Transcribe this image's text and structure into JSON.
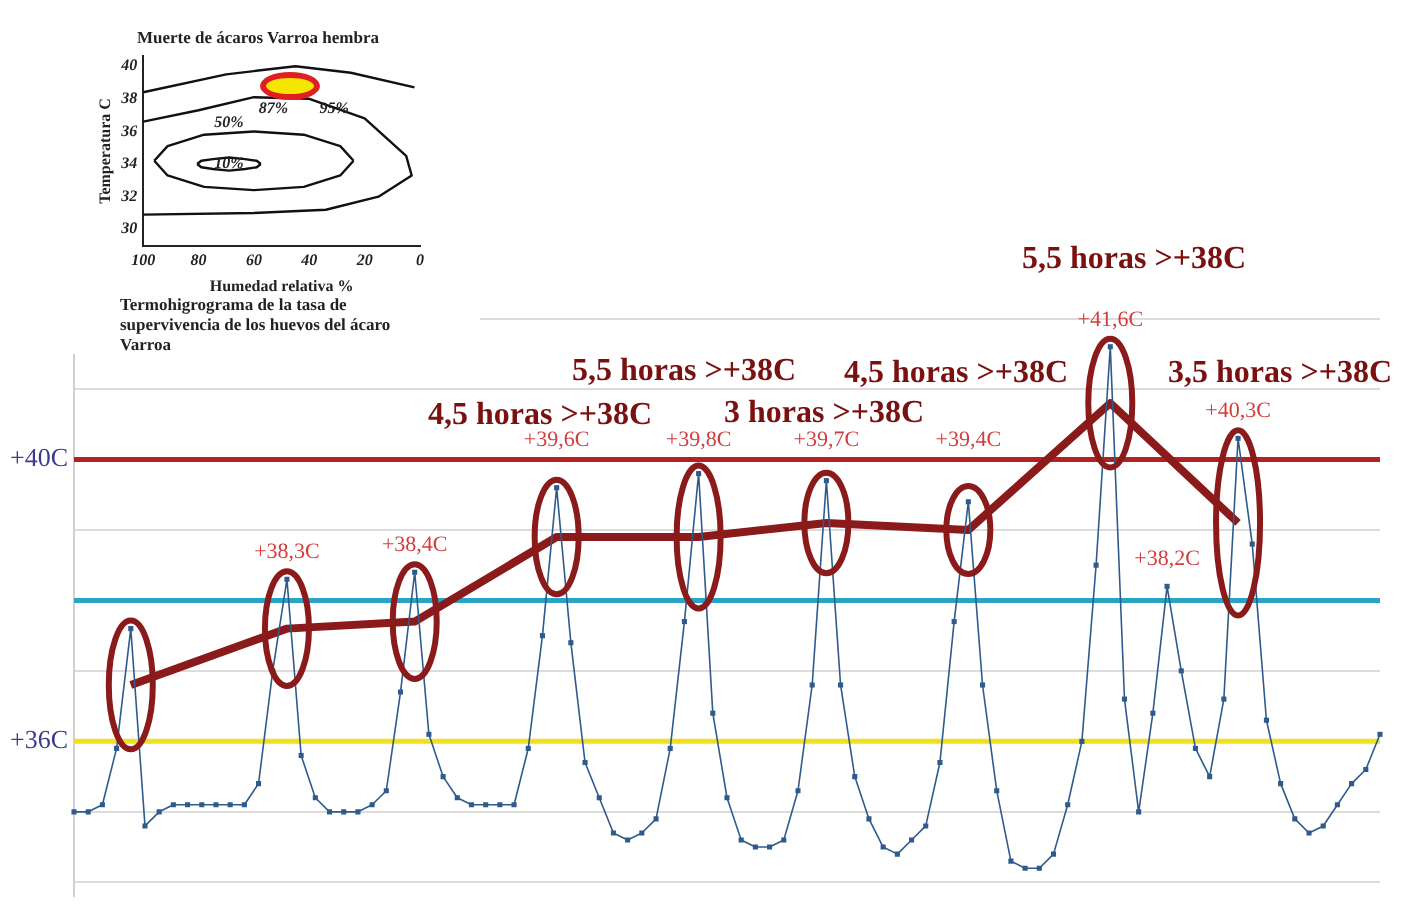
{
  "chart_data": [
    {
      "type": "line",
      "ylim": [
        33.8,
        43.2
      ],
      "categories": [
        null,
        null,
        null,
        null,
        null,
        null,
        null,
        null,
        null,
        null,
        null,
        null,
        null,
        null,
        null,
        null,
        null,
        null,
        null,
        null,
        null,
        null,
        null,
        null,
        null,
        null,
        null,
        null,
        null,
        null,
        null,
        null,
        null,
        null,
        null,
        null,
        null,
        null,
        null,
        null,
        null,
        null,
        null,
        null,
        null,
        null,
        null,
        null,
        null,
        null,
        null,
        null,
        null,
        null,
        null,
        null,
        null,
        null,
        null,
        null,
        null,
        null,
        null,
        null,
        null,
        null,
        null,
        null,
        null,
        null,
        null,
        null,
        null,
        null,
        null,
        null,
        null,
        null,
        null,
        null,
        null,
        null,
        null,
        null,
        null,
        null,
        null,
        null,
        null,
        null,
        null,
        null,
        null
      ],
      "yticks": [
        {
          "value": 34,
          "label": null
        },
        {
          "value": 35,
          "label": null
        },
        {
          "value": 36,
          "label": "+36C"
        },
        {
          "value": 37,
          "label": null
        },
        {
          "value": 38,
          "label": null
        },
        {
          "value": 39,
          "label": null
        },
        {
          "value": 40,
          "label": "+40C"
        },
        {
          "value": 41,
          "label": null
        },
        {
          "value": 42,
          "label": null
        }
      ],
      "tick_labels": "y",
      "grid": "y",
      "legend": false,
      "series": [
        {
          "type": "line",
          "color": "#2f5b8c",
          "marker": "square",
          "values": [
            35.0,
            35.0,
            35.1,
            35.9,
            37.6,
            34.8,
            35.0,
            35.1,
            35.1,
            35.1,
            35.1,
            35.1,
            35.1,
            35.4,
            37.0,
            38.3,
            35.8,
            35.2,
            35.0,
            35.0,
            35.0,
            35.1,
            35.3,
            36.7,
            38.4,
            36.1,
            35.5,
            35.2,
            35.1,
            35.1,
            35.1,
            35.1,
            35.9,
            37.5,
            39.6,
            37.4,
            35.7,
            35.2,
            34.7,
            34.6,
            34.7,
            34.9,
            35.9,
            37.7,
            39.8,
            36.4,
            35.2,
            34.6,
            34.5,
            34.5,
            34.6,
            35.3,
            36.8,
            39.7,
            36.8,
            35.5,
            34.9,
            34.5,
            34.4,
            34.6,
            34.8,
            35.7,
            37.7,
            39.4,
            36.8,
            35.3,
            34.3,
            34.2,
            34.2,
            34.4,
            35.1,
            36.0,
            38.5,
            41.6,
            36.6,
            35.0,
            36.4,
            38.2,
            37.0,
            35.9,
            35.5,
            36.6,
            40.3,
            38.8,
            36.3,
            35.4,
            34.9,
            34.7,
            34.8,
            35.1,
            35.4,
            35.6,
            36.1
          ],
          "value_labels": [
            null,
            null,
            null,
            null,
            null,
            null,
            null,
            null,
            null,
            null,
            null,
            null,
            null,
            null,
            null,
            "+38,3C",
            null,
            null,
            null,
            null,
            null,
            null,
            null,
            null,
            "+38,4C",
            null,
            null,
            null,
            null,
            null,
            null,
            null,
            null,
            null,
            "+39,6C",
            null,
            null,
            null,
            null,
            null,
            null,
            null,
            null,
            null,
            "+39,8C",
            null,
            null,
            null,
            null,
            null,
            null,
            null,
            null,
            "+39,7C",
            null,
            null,
            null,
            null,
            null,
            null,
            null,
            null,
            null,
            "+39,4C",
            null,
            null,
            null,
            null,
            null,
            null,
            null,
            null,
            null,
            "+41,6C",
            null,
            null,
            null,
            "+38,2C",
            null,
            null,
            null,
            null,
            "+40,3C",
            null,
            null,
            null,
            null,
            null,
            null,
            null,
            null,
            null,
            null
          ]
        },
        {
          "type": "line",
          "color": "#8b1a1a",
          "marker": "none",
          "values": [
            null,
            null,
            null,
            null,
            36.8,
            null,
            null,
            null,
            null,
            null,
            null,
            null,
            null,
            null,
            null,
            37.6,
            null,
            null,
            null,
            null,
            null,
            null,
            null,
            null,
            37.7,
            null,
            null,
            null,
            null,
            null,
            null,
            null,
            null,
            null,
            38.9,
            null,
            null,
            null,
            null,
            null,
            null,
            null,
            null,
            null,
            38.9,
            null,
            null,
            null,
            null,
            null,
            null,
            null,
            null,
            39.1,
            null,
            null,
            null,
            null,
            null,
            null,
            null,
            null,
            null,
            39.0,
            null,
            null,
            null,
            null,
            null,
            null,
            null,
            null,
            null,
            40.8,
            null,
            null,
            null,
            null,
            null,
            null,
            null,
            null,
            39.1,
            null,
            null,
            null,
            null,
            null,
            null,
            null,
            null,
            null,
            null
          ]
        }
      ],
      "ref_lines": [
        {
          "axis": "y",
          "value": 40,
          "color": "#b22222"
        },
        {
          "axis": "y",
          "value": 36,
          "color": "#f2e01e"
        },
        {
          "axis": "y",
          "value": 38,
          "color": "#2aa3c6"
        }
      ],
      "annotations": [
        "5,5 horas >+38C",
        "4,5 horas >+38C",
        "5,5 horas >+38C",
        "3 horas >+38C",
        "4,5 horas >+38C",
        "3,5 horas >+38C"
      ]
    },
    {
      "type": "line",
      "title": "Muerte de ácaros Varroa hembra",
      "xlabel": "Humedad relativa %",
      "ylabel": "Temperatura C",
      "xlim": [
        100,
        0
      ],
      "xticks": [
        100,
        80,
        60,
        40,
        20,
        0
      ],
      "ylim": [
        29,
        40.6
      ],
      "yticks": [
        30,
        32,
        34,
        36,
        38,
        40
      ],
      "series": [
        {
          "color": "#111111",
          "marker": "none",
          "x": [
            100,
            70,
            45,
            25,
            2
          ],
          "values": [
            38.4,
            39.5,
            40.0,
            39.6,
            38.7
          ]
        },
        {
          "color": "#111111",
          "marker": "none",
          "x": [
            100,
            80,
            60,
            40,
            20,
            5,
            3,
            15,
            34,
            60,
            100
          ],
          "values": [
            36.6,
            37.3,
            38.1,
            38.0,
            36.8,
            34.5,
            33.3,
            32.0,
            31.2,
            31.0,
            30.9
          ]
        },
        {
          "color": "#111111",
          "marker": "none",
          "x": [
            96,
            91.2,
            78,
            60,
            42,
            28.8,
            24
          ],
          "values": [
            34.2,
            35.1,
            35.8,
            36.0,
            35.8,
            35.1,
            34.2
          ]
        },
        {
          "color": "#111111",
          "marker": "none",
          "x": [
            96,
            91.2,
            78,
            60,
            42,
            28.8,
            24
          ],
          "values": [
            34.2,
            33.3,
            32.6,
            32.4,
            32.6,
            33.3,
            34.2
          ]
        },
        {
          "color": "#111111",
          "marker": "none",
          "x": [
            80.5,
            79,
            74.8,
            69,
            63.2,
            59,
            57.5
          ],
          "values": [
            34.0,
            34.2,
            34.3,
            34.4,
            34.3,
            34.2,
            34.0
          ]
        },
        {
          "color": "#111111",
          "marker": "none",
          "x": [
            80.5,
            79,
            74.8,
            69,
            63.2,
            59,
            57.5
          ],
          "values": [
            34.0,
            33.8,
            33.7,
            33.6,
            33.7,
            33.8,
            34.0
          ]
        }
      ],
      "annotations": [
        {
          "text": "87%",
          "x": 53,
          "y": 37.4
        },
        {
          "text": "95%",
          "x": 31,
          "y": 37.4
        },
        "50%",
        {
          "text": "10%",
          "x": 69,
          "y": 34.0
        },
        "Termohigrograma de la tasa de supervivencia de los huevos del ácaro Varroa"
      ]
    }
  ]
}
